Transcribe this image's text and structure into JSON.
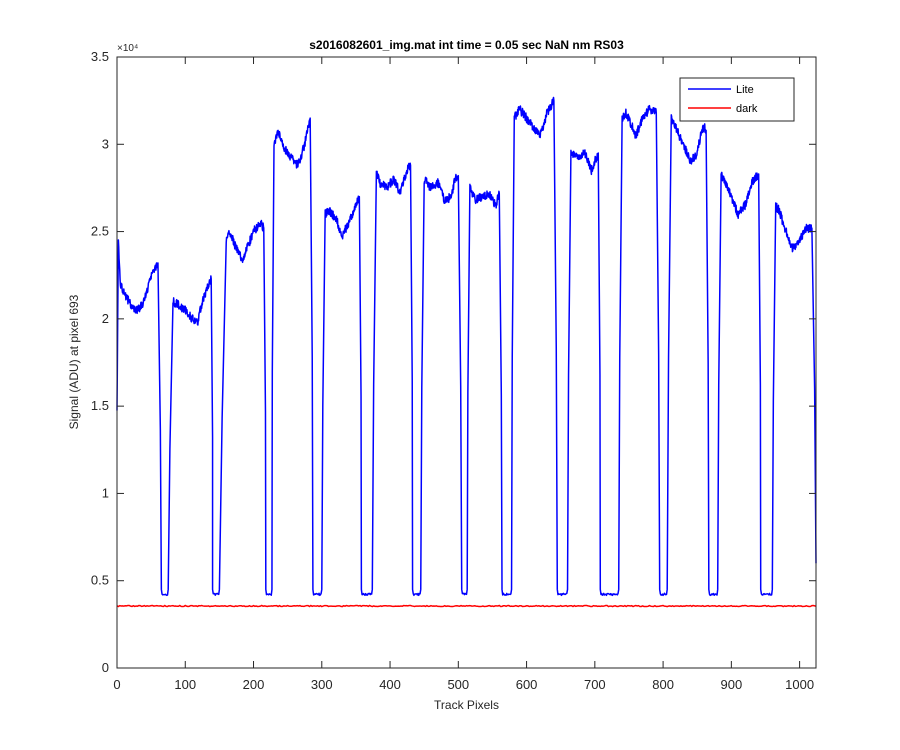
{
  "chart_data": {
    "type": "line",
    "title": "s2016082601_img.mat int time = 0.05 sec  NaN nm RS03",
    "xlabel": "Track Pixels",
    "ylabel": "Signal (ADU) at pixel 693",
    "xlim": [
      0,
      1024
    ],
    "ylim": [
      0,
      35000
    ],
    "x_ticks": [
      0,
      100,
      200,
      300,
      400,
      500,
      600,
      700,
      800,
      900,
      1000
    ],
    "y_ticks": [
      0,
      0.5,
      1,
      1.5,
      2,
      2.5,
      3,
      3.5
    ],
    "y_tick_labels": [
      "0",
      "0.5",
      "1",
      "1.5",
      "2",
      "2.5",
      "3",
      "3.5"
    ],
    "y_exponent_label": "×10⁴",
    "legend_position": "top-right",
    "series": [
      {
        "name": "Lite",
        "color": "#0000ff",
        "segments": [
          {
            "x": [
              0,
              2,
              5,
              10,
              20,
              30,
              40,
              50,
              57,
              60
            ],
            "y": [
              15000,
              24500,
              22000,
              21500,
              20800,
              20500,
              21000,
              22500,
              23000,
              23200
            ]
          },
          {
            "x": [
              82,
              90,
              100,
              110,
              118,
              125,
              130,
              135,
              138
            ],
            "y": [
              21000,
              20800,
              20500,
              20000,
              19800,
              21000,
              21500,
              22000,
              22300
            ]
          },
          {
            "x": [
              160,
              165,
              175,
              185,
              190,
              200,
              210,
              215
            ],
            "y": [
              24500,
              25000,
              24000,
              23300,
              24000,
              25000,
              25500,
              25200
            ]
          },
          {
            "x": [
              230,
              235,
              245,
              260,
              265,
              275,
              280,
              283
            ],
            "y": [
              29800,
              30800,
              29800,
              29000,
              28800,
              30000,
              31000,
              31500
            ]
          },
          {
            "x": [
              305,
              310,
              320,
              330,
              340,
              350,
              355
            ],
            "y": [
              26000,
              26200,
              25800,
              24800,
              25500,
              26500,
              27000
            ]
          },
          {
            "x": [
              380,
              385,
              395,
              405,
              415,
              425,
              430
            ],
            "y": [
              28400,
              27800,
              27500,
              28000,
              27200,
              28500,
              28800
            ]
          },
          {
            "x": [
              450,
              460,
              470,
              480,
              490,
              495,
              500
            ],
            "y": [
              28000,
              27500,
              27800,
              26800,
              27000,
              28000,
              28200
            ]
          },
          {
            "x": [
              517,
              525,
              535,
              545,
              555,
              560
            ],
            "y": [
              27500,
              26800,
              27000,
              27200,
              26500,
              27200
            ]
          },
          {
            "x": [
              582,
              590,
              600,
              610,
              620,
              630,
              640
            ],
            "y": [
              31500,
              32000,
              31500,
              31000,
              30500,
              31800,
              32500
            ]
          },
          {
            "x": [
              665,
              675,
              685,
              695,
              700,
              705
            ],
            "y": [
              29500,
              29300,
              29500,
              28500,
              29000,
              29500
            ]
          },
          {
            "x": [
              740,
              745,
              755,
              760,
              770,
              780,
              790
            ],
            "y": [
              31500,
              31800,
              31000,
              30500,
              31500,
              32000,
              31800
            ]
          },
          {
            "x": [
              812,
              820,
              830,
              840,
              850,
              855,
              860,
              863
            ],
            "y": [
              31500,
              30800,
              30000,
              29000,
              29500,
              30500,
              31000,
              30800
            ]
          },
          {
            "x": [
              885,
              890,
              900,
              910,
              920,
              930,
              940
            ],
            "y": [
              28300,
              27800,
              27000,
              26000,
              26500,
              27800,
              28300
            ]
          },
          {
            "x": [
              965,
              970,
              980,
              990,
              1000,
              1010,
              1018
            ],
            "y": [
              26500,
              26200,
              25000,
              24000,
              24500,
              25200,
              25200
            ]
          }
        ],
        "dips": [
          [
            65,
            75
          ],
          [
            140,
            150
          ],
          [
            218,
            227
          ],
          [
            287,
            300
          ],
          [
            358,
            374
          ],
          [
            433,
            445
          ],
          [
            505,
            513
          ],
          [
            564,
            578
          ],
          [
            645,
            660
          ],
          [
            708,
            735
          ],
          [
            795,
            806
          ],
          [
            867,
            880
          ],
          [
            943,
            960
          ]
        ],
        "dip_min": 4100,
        "end": {
          "x": [
            1018,
            1022,
            1024
          ],
          "y": [
            25200,
            16000,
            6000
          ]
        }
      },
      {
        "name": "dark",
        "color": "#ff0000",
        "x": [
          0,
          1024
        ],
        "y": [
          3550,
          3550
        ]
      }
    ]
  }
}
